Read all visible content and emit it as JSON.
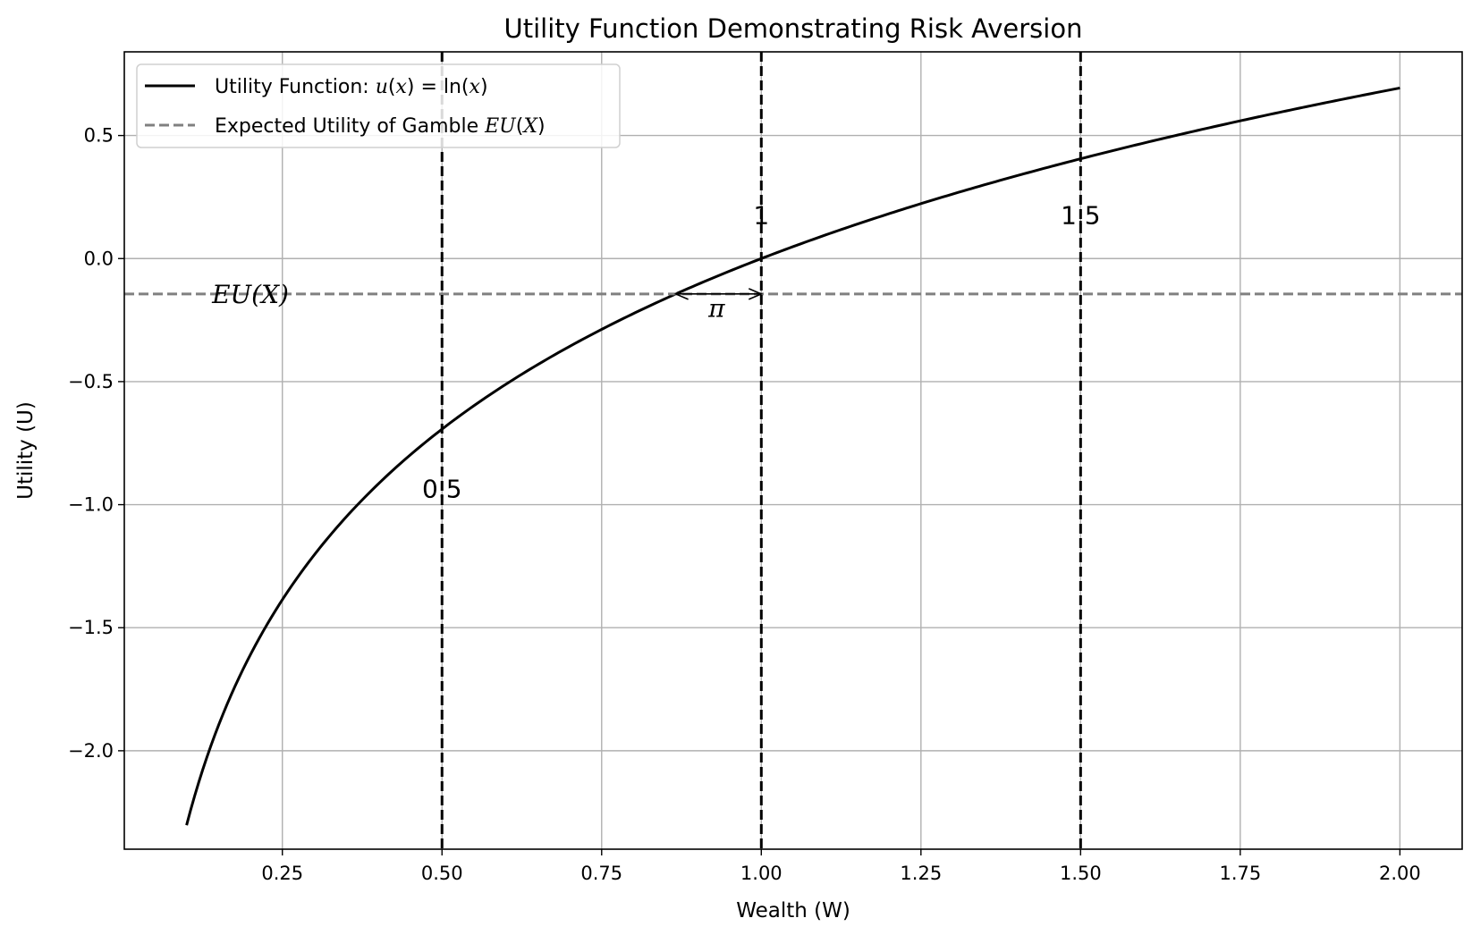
{
  "chart_data": {
    "type": "line",
    "title": "Utility Function Demonstrating Risk Aversion",
    "xlabel": "Wealth (W)",
    "ylabel": "Utility (U)",
    "xlim": [
      0.0025,
      2.0975
    ],
    "ylim": [
      -2.4,
      0.84
    ],
    "xticks": [
      0.25,
      0.5,
      0.75,
      1.0,
      1.25,
      1.5,
      1.75,
      2.0
    ],
    "xtick_labels": [
      "0.25",
      "0.50",
      "0.75",
      "1.00",
      "1.25",
      "1.50",
      "1.75",
      "2.00"
    ],
    "yticks": [
      0.5,
      0.0,
      -0.5,
      -1.0,
      -1.5,
      -2.0
    ],
    "ytick_labels": [
      "0.5",
      "0.0",
      "−0.5",
      "−1.0",
      "−1.5",
      "−2.0"
    ],
    "grid": true,
    "legend_position": "top-left",
    "series": [
      {
        "name": "Utility Function: u(x) = ln(x)",
        "style": "solid",
        "color": "#000000",
        "function": "ln",
        "x_range": [
          0.1,
          2.0
        ]
      },
      {
        "name": "Expected Utility of Gamble EU(X)",
        "style": "dashed",
        "color": "#808080",
        "y": -0.1438
      }
    ],
    "vertical_lines": [
      {
        "x": 0.5,
        "label": "0.5",
        "label_y": -0.97
      },
      {
        "x": 1.0,
        "label": "1",
        "label_y": 0.14
      },
      {
        "x": 1.5,
        "label": "1.5",
        "label_y": 0.14
      }
    ],
    "annotations": [
      {
        "text": "EU(X)",
        "x": 0.2,
        "y": -0.1438
      },
      {
        "text": "π",
        "x": 0.93,
        "y": -0.2,
        "arrow_from_x": 1.0,
        "arrow_to_x": 0.866,
        "arrow_y": -0.1438
      }
    ]
  }
}
